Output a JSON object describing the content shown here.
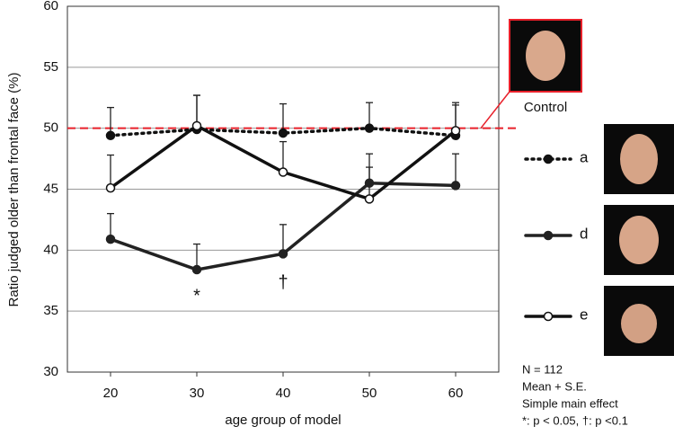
{
  "chart_data": {
    "type": "line",
    "x_label": "age group of model",
    "y_label": "Ratio judged older than frontal face (%)",
    "categories": [
      "20",
      "30",
      "40",
      "50",
      "60"
    ],
    "ylim": [
      30,
      60
    ],
    "yticks": [
      30,
      35,
      40,
      45,
      50,
      55,
      60
    ],
    "grid": true,
    "reference_line": {
      "value": 50,
      "label": "Control",
      "color": "#e8202a"
    },
    "series": [
      {
        "name": "a",
        "color": "#111111",
        "style": "dotted",
        "marker": "filled",
        "values": [
          49.4,
          49.9,
          49.6,
          50.0,
          49.4
        ],
        "errors": [
          2.3,
          2.8,
          2.4,
          2.1,
          2.7
        ]
      },
      {
        "name": "d",
        "color": "#222222",
        "style": "solid",
        "marker": "filled",
        "values": [
          40.9,
          38.4,
          39.7,
          45.5,
          45.3
        ],
        "errors": [
          2.1,
          2.1,
          2.4,
          2.4,
          2.6
        ]
      },
      {
        "name": "e",
        "color": "#111111",
        "style": "solid",
        "marker": "open",
        "values": [
          45.1,
          50.2,
          46.4,
          44.2,
          49.8
        ],
        "errors": [
          2.7,
          2.5,
          2.5,
          2.6,
          2.1
        ]
      }
    ],
    "annotations": [
      "*",
      "†"
    ],
    "notes": [
      "N = 112",
      "Mean + S.E.",
      "Simple main effect",
      "*: p < 0.05, †: p <0.1"
    ]
  }
}
